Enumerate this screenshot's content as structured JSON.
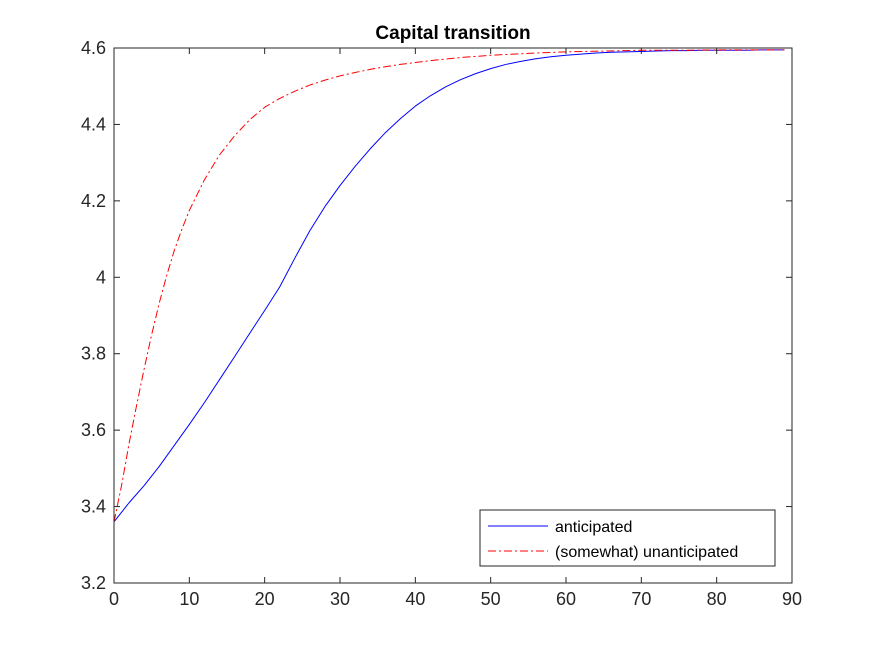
{
  "chart_data": {
    "type": "line",
    "title": "Capital transition",
    "xlabel": "",
    "ylabel": "",
    "xlim": [
      0,
      90
    ],
    "ylim": [
      3.2,
      4.6
    ],
    "x_ticks": [
      0,
      10,
      20,
      30,
      40,
      50,
      60,
      70,
      80,
      90
    ],
    "y_ticks": [
      3.2,
      3.4,
      3.6,
      3.8,
      4.0,
      4.2,
      4.4,
      4.6
    ],
    "x_tick_labels": [
      "0",
      "10",
      "20",
      "30",
      "40",
      "50",
      "60",
      "70",
      "80",
      "90"
    ],
    "y_tick_labels": [
      "3.2",
      "3.4",
      "3.6",
      "3.8",
      "4",
      "4.2",
      "4.4",
      "4.6"
    ],
    "grid": false,
    "legend_position": "bottom-right",
    "series": [
      {
        "name": "anticipated",
        "color": "#0000ff",
        "line_style": "solid",
        "x": [
          0,
          2,
          4,
          6,
          8,
          10,
          12,
          14,
          16,
          18,
          20,
          22,
          24,
          26,
          28,
          30,
          32,
          34,
          36,
          38,
          40,
          42,
          44,
          46,
          48,
          50,
          52,
          54,
          56,
          58,
          60,
          62,
          64,
          66,
          68,
          70,
          72,
          74,
          76,
          78,
          80,
          82,
          84,
          86,
          89
        ],
        "values": [
          3.36,
          3.41,
          3.455,
          3.505,
          3.56,
          3.615,
          3.672,
          3.732,
          3.792,
          3.853,
          3.913,
          3.975,
          4.05,
          4.122,
          4.185,
          4.24,
          4.29,
          4.336,
          4.378,
          4.415,
          4.448,
          4.475,
          4.498,
          4.517,
          4.533,
          4.546,
          4.557,
          4.565,
          4.572,
          4.577,
          4.581,
          4.584,
          4.587,
          4.589,
          4.59,
          4.591,
          4.592,
          4.593,
          4.593,
          4.594,
          4.594,
          4.594,
          4.594,
          4.595,
          4.595
        ]
      },
      {
        "name": "(somewhat) unanticipated",
        "color": "#ff0000",
        "line_style": "dash-dot",
        "x": [
          0,
          1,
          2,
          3,
          4,
          5,
          6,
          7,
          8,
          9,
          10,
          12,
          14,
          16,
          18,
          20,
          22,
          24,
          26,
          28,
          30,
          32,
          34,
          36,
          38,
          40,
          42,
          44,
          46,
          48,
          50,
          55,
          60,
          65,
          70,
          75,
          80,
          85,
          89
        ],
        "values": [
          3.36,
          3.455,
          3.565,
          3.665,
          3.76,
          3.85,
          3.932,
          4.005,
          4.07,
          4.125,
          4.175,
          4.255,
          4.32,
          4.37,
          4.412,
          4.445,
          4.468,
          4.487,
          4.503,
          4.516,
          4.527,
          4.536,
          4.544,
          4.551,
          4.557,
          4.562,
          4.567,
          4.571,
          4.575,
          4.578,
          4.581,
          4.586,
          4.59,
          4.592,
          4.594,
          4.594,
          4.595,
          4.595,
          4.595
        ]
      }
    ]
  }
}
